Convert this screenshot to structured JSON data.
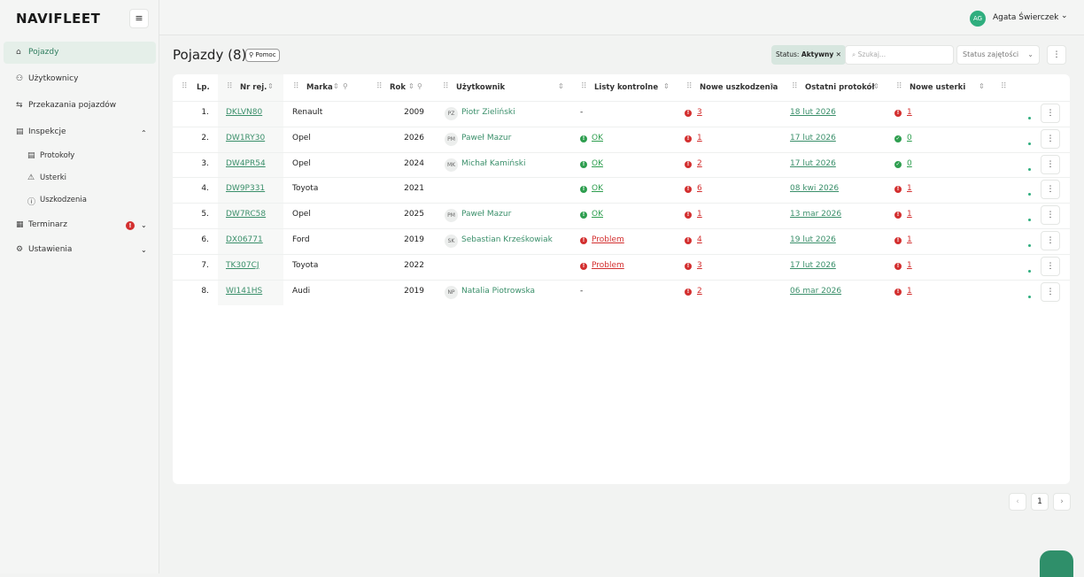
{
  "header": {
    "logo": "NAVIFLEET",
    "user_initials": "AG",
    "user_name": "Agata Świerczek"
  },
  "nav": [
    "Pojazdy",
    "Użytkownicy",
    "Przekazania pojazdów",
    "Inspekcje",
    "Protokoły",
    "Usterki",
    "Uszkodzenia",
    "Terminarz",
    "Ustawienia"
  ],
  "toolbar": {
    "title": "Pojazdy (8)",
    "help": "Pomoc",
    "filter_label": "Status:",
    "filter_value": "Aktywny",
    "search_placeholder": "Szukaj...",
    "status_select": "Status zajętości"
  },
  "table": {
    "columns": [
      "Lp.",
      "Nr rej.",
      "Marka",
      "Rok",
      "Użytkownik",
      "Listy kontrolne",
      "Nowe uszkodzenia",
      "Ostatni protokół",
      "Nowe usterki"
    ],
    "rows": [
      {
        "lp": "1.",
        "plate": "DKLVN80",
        "make": "Renault",
        "year": 2009,
        "initials": "PZ",
        "user": "Piotr Zieliński",
        "checklist": "-",
        "checklist_color": null,
        "damages": 3,
        "protocol": "18 lut 2026",
        "defects": 1,
        "defects_color": "#d32f2f"
      },
      {
        "lp": "2.",
        "plate": "DW1RY30",
        "make": "Opel",
        "year": 2026,
        "initials": "PM",
        "user": "Paweł Mazur",
        "checklist": "OK",
        "checklist_color": "#2e9e4f",
        "damages": 1,
        "protocol": "17 lut 2026",
        "defects": 0,
        "defects_color": "#2e9e4f"
      },
      {
        "lp": "3.",
        "plate": "DW4PR54",
        "make": "Opel",
        "year": 2024,
        "initials": "MK",
        "user": "Michał Kamiński",
        "checklist": "OK",
        "checklist_color": "#2e9e4f",
        "damages": 2,
        "protocol": "17 lut 2026",
        "defects": 0,
        "defects_color": "#2e9e4f"
      },
      {
        "lp": "4.",
        "plate": "DW9P331",
        "make": "Toyota",
        "year": 2021,
        "initials": null,
        "user": null,
        "checklist": "OK",
        "checklist_color": "#2e9e4f",
        "damages": 6,
        "protocol": "08 kwi 2026",
        "defects": 1,
        "defects_color": "#d32f2f"
      },
      {
        "lp": "5.",
        "plate": "DW7RC58",
        "make": "Opel",
        "year": 2025,
        "initials": "PM",
        "user": "Paweł Mazur",
        "checklist": "OK",
        "checklist_color": "#2e9e4f",
        "damages": 1,
        "protocol": "13 mar 2026",
        "defects": 1,
        "defects_color": "#d32f2f"
      },
      {
        "lp": "6.",
        "plate": "DX06771",
        "make": "Ford",
        "year": 2019,
        "initials": "SK",
        "user": "Sebastian Krześkowiak",
        "checklist": "Problem",
        "checklist_color": "#d32f2f",
        "damages": 4,
        "protocol": "19 lut 2026",
        "defects": 1,
        "defects_color": "#d32f2f"
      },
      {
        "lp": "7.",
        "plate": "TK307CJ",
        "make": "Toyota",
        "year": 2022,
        "initials": null,
        "user": null,
        "checklist": "Problem",
        "checklist_color": "#d32f2f",
        "damages": 3,
        "protocol": "17 lut 2026",
        "defects": 1,
        "defects_color": "#d32f2f"
      },
      {
        "lp": "8.",
        "plate": "WI141HS",
        "make": "Audi",
        "year": 2019,
        "initials": "NP",
        "user": "Natalia Piotrowska",
        "checklist": "-",
        "checklist_color": null,
        "damages": 2,
        "protocol": "06 mar 2026",
        "defects": 1,
        "defects_color": "#d32f2f"
      }
    ]
  },
  "pagination": {
    "page": "1"
  }
}
